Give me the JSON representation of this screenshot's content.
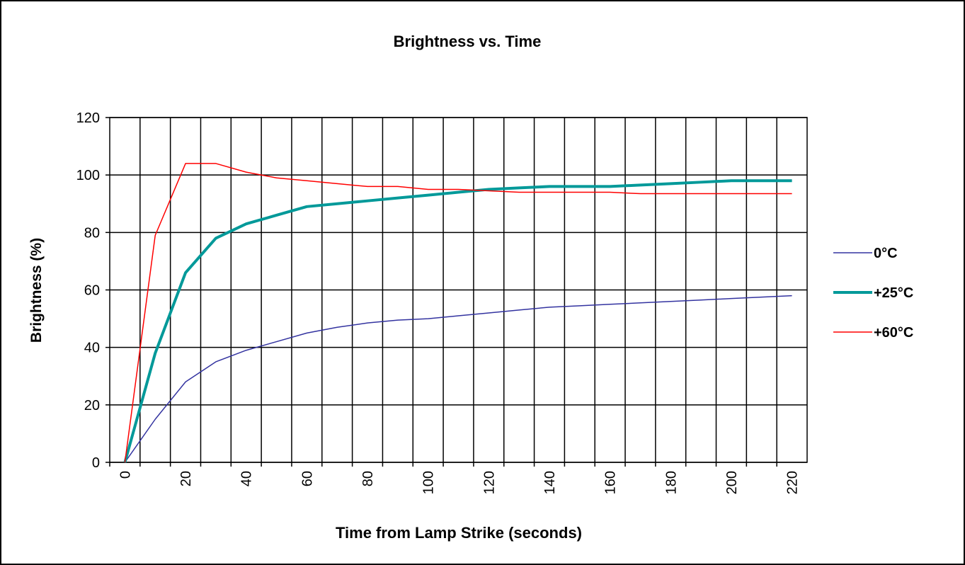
{
  "chart_data": {
    "type": "line",
    "title": "Brightness vs. Time",
    "x_label": "Time from Lamp Strike (seconds)",
    "y_label": "Brightness (%)",
    "categories": [
      "0",
      null,
      "20",
      null,
      "40",
      null,
      "60",
      null,
      "80",
      null,
      "100",
      null,
      "120",
      null,
      "140",
      null,
      "160",
      null,
      "180",
      null,
      "200",
      null,
      "220"
    ],
    "series": [
      {
        "name": "0°C",
        "color": "#3333a0",
        "width": 1.5,
        "values": [
          0,
          15,
          28,
          35,
          39,
          42,
          45,
          47,
          48.5,
          49.5,
          50,
          51,
          52,
          53,
          54,
          54.5,
          55,
          55.5,
          56,
          56.5,
          57,
          57.5,
          58
        ]
      },
      {
        "name": "+25°C",
        "color": "#009999",
        "width": 4,
        "values": [
          0,
          38,
          66,
          78,
          83,
          86,
          89,
          90,
          91,
          92,
          93,
          94,
          95,
          95.5,
          96,
          96,
          96,
          96.5,
          97,
          97.5,
          98,
          98,
          98
        ]
      },
      {
        "name": "+60°C",
        "color": "#ff0000",
        "width": 1.5,
        "values": [
          0,
          79,
          104,
          104,
          101,
          99,
          98,
          97,
          96,
          96,
          95,
          95,
          94.5,
          94,
          94,
          94,
          94,
          93.5,
          93.5,
          93.5,
          93.5,
          93.5,
          93.5
        ]
      }
    ],
    "ylim": [
      0,
      120
    ],
    "yticks": [
      0,
      20,
      40,
      60,
      80,
      100,
      120
    ],
    "grid": true,
    "legend": "right"
  }
}
